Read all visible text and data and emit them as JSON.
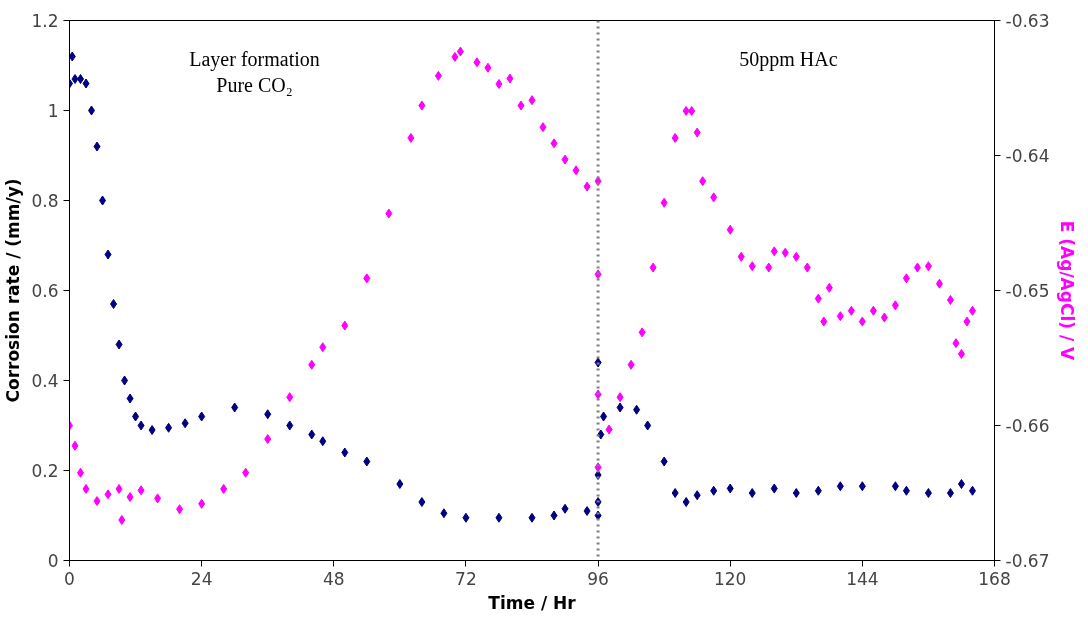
{
  "chart_data": {
    "type": "scatter",
    "xlabel": "Time / Hr",
    "ylabel": "Corrosion rate / (mm/y)",
    "y2label": "E (Ag/AgCl) / V",
    "xlim": [
      0,
      168
    ],
    "xticks": [
      0,
      24,
      48,
      72,
      96,
      120,
      144,
      168
    ],
    "ylim": [
      0,
      1.2
    ],
    "yticks": [
      0,
      {
        "value": 0.2,
        "label": "0.2"
      },
      {
        "value": 0.4,
        "label": "0.4"
      },
      {
        "value": 0.6,
        "label": "0.6"
      },
      {
        "value": 0.8,
        "label": "0.8"
      },
      1,
      {
        "value": 1.2,
        "label": "1.2"
      }
    ],
    "y2lim": [
      -0.67,
      -0.63
    ],
    "y2ticks": [
      -0.67,
      -0.66,
      -0.65,
      -0.64,
      -0.63
    ],
    "grid": false,
    "marker": "diamond",
    "annotations": [
      "Layer formation\nPure CO₂",
      "50ppm HAc"
    ],
    "ref_lines": [
      {
        "axis": "x",
        "value": 96,
        "color": "#808080",
        "line_style": "dotted"
      }
    ],
    "series": [
      {
        "color": "#000080",
        "x": [
          0,
          0.5,
          1,
          2,
          3,
          4,
          5,
          6,
          7,
          8,
          9,
          10,
          11,
          12,
          13,
          15,
          18,
          21,
          24,
          30,
          36,
          40,
          44,
          46,
          50,
          54,
          60,
          64,
          68,
          72,
          78,
          84,
          88,
          90,
          94,
          96,
          96,
          96,
          96,
          96.5,
          97,
          100,
          103,
          105,
          108,
          110,
          112,
          114,
          117,
          120,
          124,
          128,
          132,
          136,
          140,
          144,
          150,
          152,
          156,
          160,
          162,
          164
        ],
        "values": [
          1.06,
          1.12,
          1.07,
          1.07,
          1.06,
          1.0,
          0.92,
          0.8,
          0.68,
          0.57,
          0.48,
          0.4,
          0.36,
          0.32,
          0.3,
          0.29,
          0.295,
          0.305,
          0.32,
          0.34,
          0.325,
          0.3,
          0.28,
          0.265,
          0.24,
          0.22,
          0.17,
          0.13,
          0.105,
          0.095,
          0.095,
          0.095,
          0.1,
          0.115,
          0.11,
          0.1,
          0.44,
          0.19,
          0.13,
          0.28,
          0.32,
          0.34,
          0.335,
          0.3,
          0.22,
          0.15,
          0.13,
          0.145,
          0.155,
          0.16,
          0.15,
          0.16,
          0.15,
          0.155,
          0.165,
          0.165,
          0.165,
          0.155,
          0.15,
          0.15,
          0.17,
          0.155
        ]
      },
      {
        "color": "#ff00ff",
        "axis": "y2",
        "x": [
          0,
          1,
          2,
          3,
          5,
          7,
          9,
          9.5,
          11,
          13,
          16,
          20,
          24,
          28,
          32,
          36,
          40,
          44,
          46,
          50,
          54,
          58,
          62,
          64,
          67,
          70,
          71,
          74,
          76,
          78,
          80,
          82,
          84,
          86,
          88,
          90,
          92,
          94,
          96,
          96,
          96,
          96,
          98,
          100,
          102,
          104,
          106,
          108,
          110,
          112,
          113,
          114,
          115,
          117,
          120,
          122,
          124,
          127,
          128,
          130,
          132,
          134,
          136,
          137,
          138,
          140,
          142,
          144,
          146,
          148,
          150,
          152,
          154,
          156,
          158,
          160,
          161,
          162,
          163,
          164
        ],
        "values": [
          -0.66,
          -0.6615,
          -0.6635,
          -0.6647,
          -0.6656,
          -0.6651,
          -0.6647,
          -0.667,
          -0.6653,
          -0.6648,
          -0.6654,
          -0.6662,
          -0.6658,
          -0.6647,
          -0.6635,
          -0.661,
          -0.6579,
          -0.6555,
          -0.6542,
          -0.6526,
          -0.6491,
          -0.6443,
          -0.6387,
          -0.6363,
          -0.6341,
          -0.6327,
          -0.6323,
          -0.6331,
          -0.6335,
          -0.6347,
          -0.6343,
          -0.6363,
          -0.6359,
          -0.6379,
          -0.6391,
          -0.6403,
          -0.6411,
          -0.6423,
          -0.6419,
          -0.6488,
          -0.6577,
          -0.6631,
          -0.6603,
          -0.6579,
          -0.6555,
          -0.6531,
          -0.6483,
          -0.6435,
          -0.6387,
          -0.6367,
          -0.6367,
          -0.6383,
          -0.6419,
          -0.6431,
          -0.6455,
          -0.6475,
          -0.6482,
          -0.6483,
          -0.6471,
          -0.6472,
          -0.6475,
          -0.6483,
          -0.6506,
          -0.6523,
          -0.6498,
          -0.6519,
          -0.6515,
          -0.6523,
          -0.6515,
          -0.652,
          -0.6511,
          -0.6491,
          -0.6483,
          -0.6482,
          -0.6495,
          -0.6507,
          -0.6539,
          -0.6547,
          -0.6523,
          -0.6515
        ]
      }
    ]
  }
}
